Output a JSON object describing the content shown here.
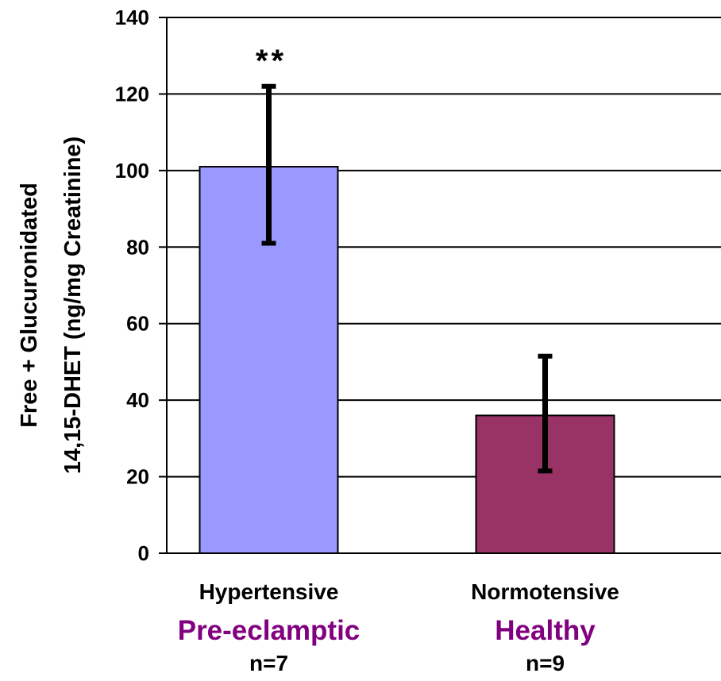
{
  "chart_data": {
    "type": "bar",
    "categories": [
      "Hypertensive",
      "Normotensive"
    ],
    "category_subtitles": [
      "Pre-eclamptic",
      "Healthy"
    ],
    "category_counts": [
      "n=7",
      "n=9"
    ],
    "values": [
      101,
      36
    ],
    "error_high": [
      122,
      51.5
    ],
    "error_low": [
      81,
      21.5
    ],
    "significance": [
      "**",
      ""
    ],
    "ylabel_line1": "Free + Glucuronidated",
    "ylabel_line2": "14,15-DHET (ng/mg Creatinine)",
    "xlabel": "",
    "title": "",
    "ylim": [
      0,
      140
    ],
    "yticks": [
      0,
      20,
      40,
      60,
      80,
      100,
      120,
      140
    ],
    "grid": true,
    "legend": "none",
    "colors": {
      "bar_fills": [
        "#9999FF",
        "#993366"
      ],
      "subtitle": "#800080",
      "grid": "#000000",
      "error_bar": "#000000"
    }
  }
}
